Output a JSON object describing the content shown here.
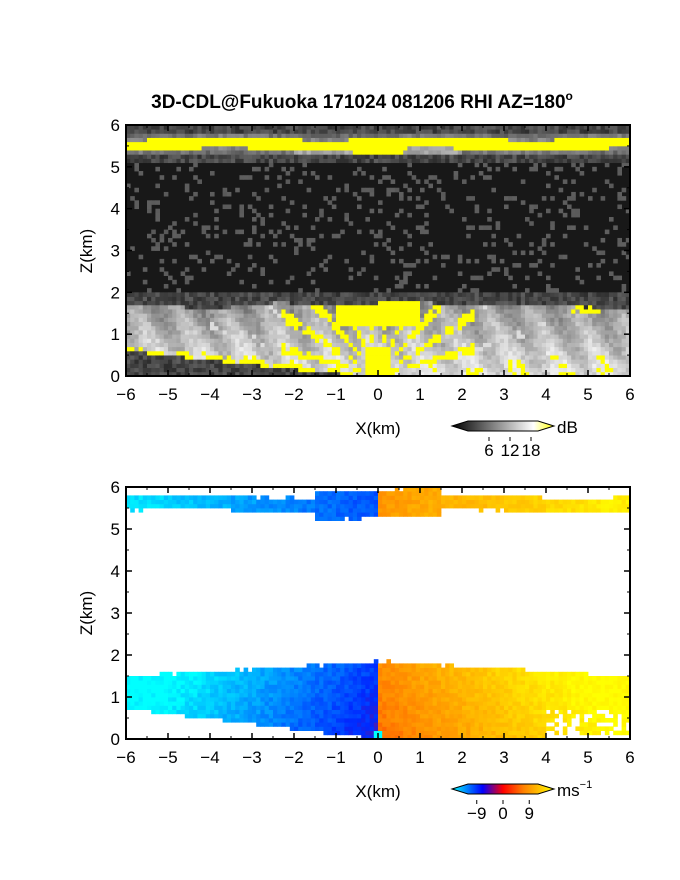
{
  "title": {
    "text": "3D-CDL@Fukuoka 171024 081206 RHI AZ=180",
    "degree_suffix": "o"
  },
  "chart_data": [
    {
      "type": "heatmap",
      "panel": "reflectivity",
      "xlabel": "X(km)",
      "ylabel": "Z(km)",
      "xlim": [
        -6,
        6
      ],
      "ylim": [
        0,
        6
      ],
      "xticks": [
        "−6",
        "−5",
        "−4",
        "−3",
        "−2",
        "−1",
        "0",
        "1",
        "2",
        "3",
        "4",
        "5",
        "6"
      ],
      "yticks": [
        "0",
        "1",
        "2",
        "3",
        "4",
        "5",
        "6"
      ],
      "background": "#181818",
      "features": [
        {
          "name": "upper cloud layer",
          "z_range": [
            5.3,
            5.8
          ],
          "max_value": 18
        },
        {
          "name": "boundary layer",
          "z_range": [
            0,
            1.8
          ],
          "max_value": 18
        }
      ],
      "colorbar": {
        "unit": "dB",
        "ticks": [
          "6",
          "12",
          "18"
        ],
        "range": [
          0,
          20
        ],
        "colors": [
          "#000000",
          "#ffffff",
          "#ffff00"
        ]
      }
    },
    {
      "type": "heatmap",
      "panel": "doppler velocity",
      "xlabel": "X(km)",
      "ylabel": "Z(km)",
      "xlim": [
        -6,
        6
      ],
      "ylim": [
        0,
        6
      ],
      "xticks": [
        "−6",
        "−5",
        "−4",
        "−3",
        "−2",
        "−1",
        "0",
        "1",
        "2",
        "3",
        "4",
        "5",
        "6"
      ],
      "yticks": [
        "0",
        "1",
        "2",
        "3",
        "4",
        "5",
        "6"
      ],
      "background": "#ffffff",
      "features": [
        {
          "name": "upper layer",
          "z_range": [
            5.3,
            5.9
          ],
          "sign_change_at_x": 0
        },
        {
          "name": "lower layer",
          "z_range": [
            0,
            1.9
          ],
          "sign_change_at_x": 0
        }
      ],
      "colorbar": {
        "unit": "ms",
        "unit_exponent": "−1",
        "ticks": [
          "−9",
          "0",
          "9"
        ],
        "range": [
          -12,
          12
        ],
        "colors": [
          "#00ffff",
          "#0000ff",
          "#ff0000",
          "#ffff00"
        ]
      }
    }
  ]
}
